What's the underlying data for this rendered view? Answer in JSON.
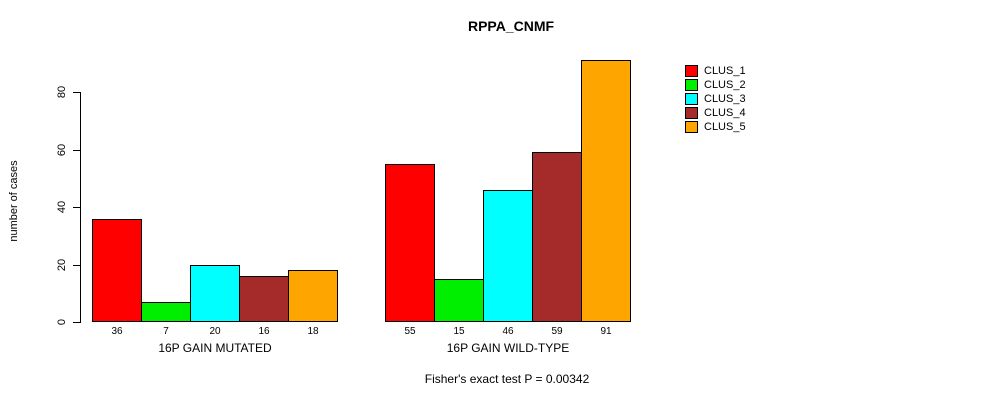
{
  "chart_data": {
    "type": "bar",
    "title": "RPPA_CNMF",
    "ylabel": "number of cases",
    "xlabel": "",
    "ylim": [
      0,
      91
    ],
    "yticks": [
      0,
      20,
      40,
      60,
      80
    ],
    "grid": false,
    "legend_position": "right",
    "categories": [
      "16P GAIN MUTATED",
      "16P GAIN WILD-TYPE"
    ],
    "series": [
      {
        "name": "CLUS_1",
        "color": "#FF0000",
        "values": [
          36,
          55
        ]
      },
      {
        "name": "CLUS_2",
        "color": "#00EE00",
        "values": [
          7,
          15
        ]
      },
      {
        "name": "CLUS_3",
        "color": "#00FFFF",
        "values": [
          20,
          46
        ]
      },
      {
        "name": "CLUS_4",
        "color": "#A52A2A",
        "values": [
          16,
          59
        ]
      },
      {
        "name": "CLUS_5",
        "color": "#FFA500",
        "values": [
          18,
          91
        ]
      }
    ],
    "annotation": "Fisher's exact test P = 0.00342"
  }
}
